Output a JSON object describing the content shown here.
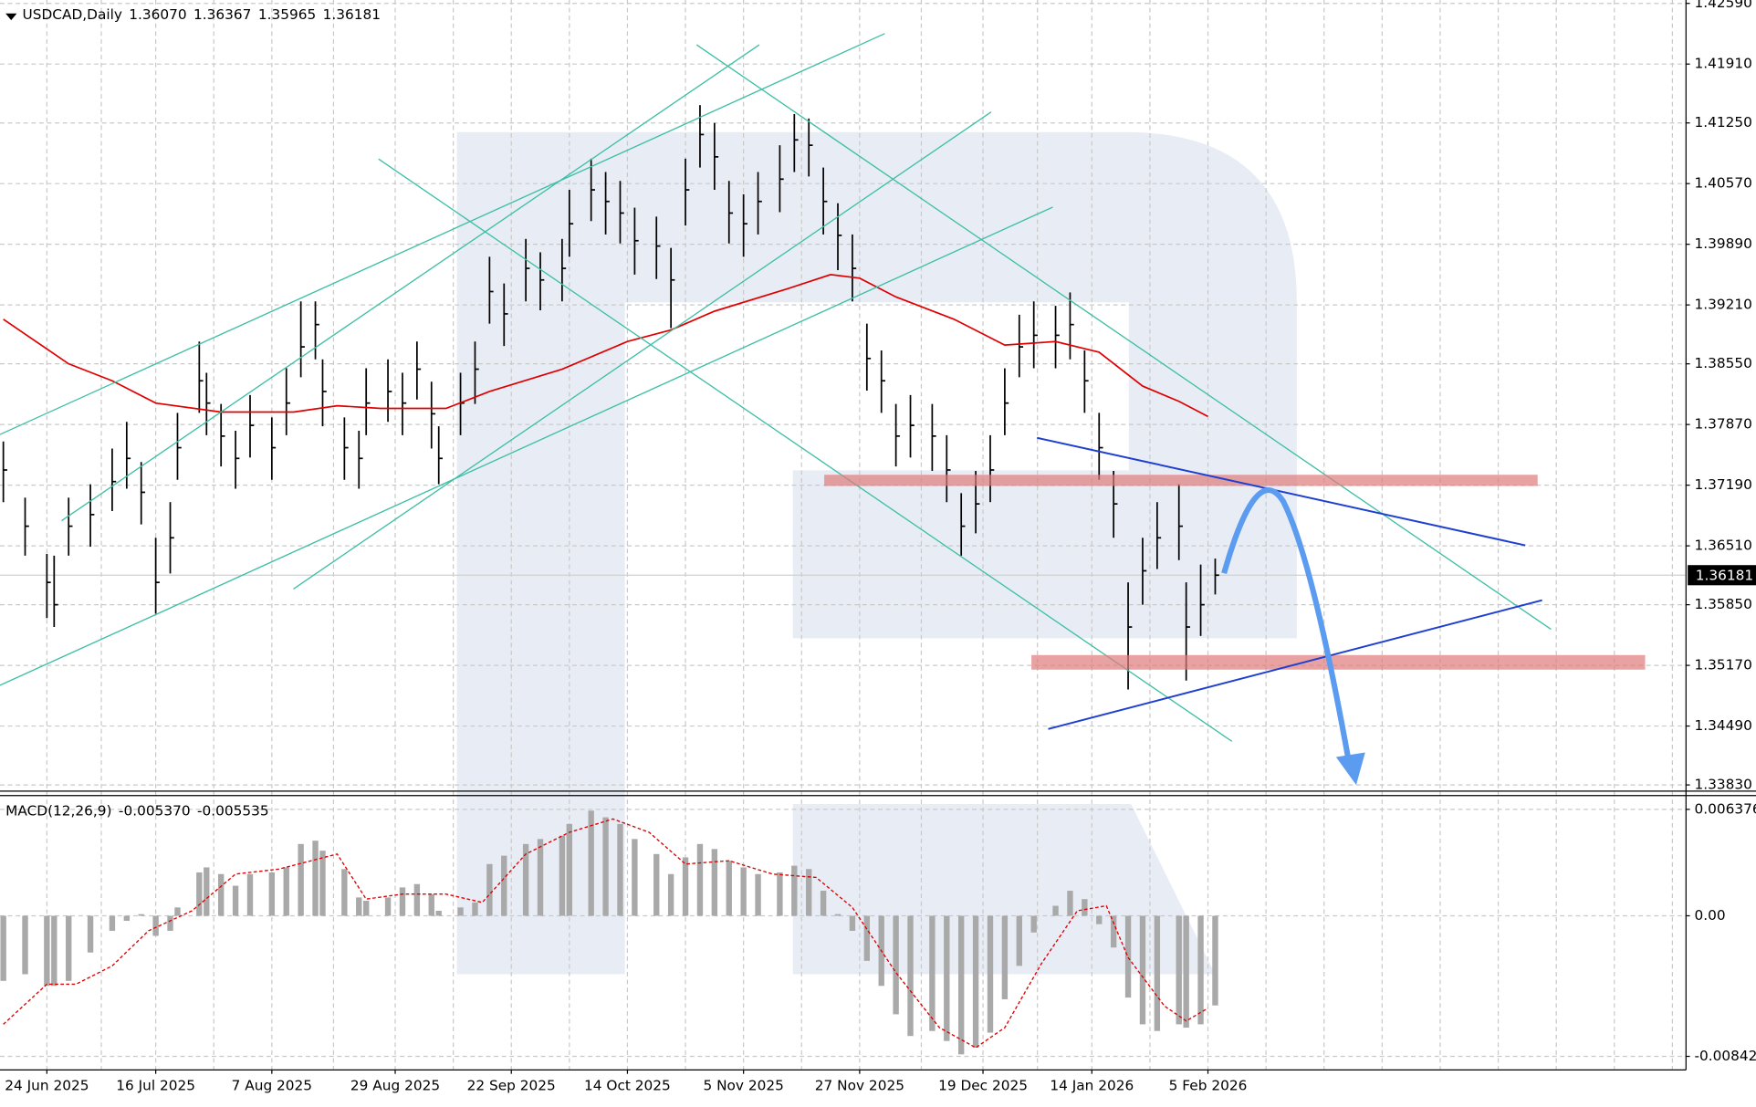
{
  "chart_data": [
    {
      "type": "ohlc",
      "title": "USDCAD,Daily",
      "header_values": [
        {
          "value": 1.3607,
          "label": "1.36070"
        },
        1.36367,
        1.35965,
        1.36181
      ],
      "x": [
        0,
        3,
        6,
        7,
        9,
        12,
        15,
        17,
        19,
        21,
        23,
        24,
        27,
        28,
        30,
        32,
        34,
        37,
        39,
        41,
        43,
        44,
        47,
        49,
        50,
        53,
        55,
        57,
        59,
        60,
        63,
        65,
        67,
        69,
        72,
        74,
        77,
        78,
        81,
        83,
        85,
        87,
        90,
        92,
        94,
        96,
        98,
        100,
        102,
        104,
        107,
        109,
        111,
        113,
        115,
        117,
        119,
        121,
        123,
        125,
        128,
        130,
        132,
        134,
        136,
        138,
        140,
        142,
        145,
        147,
        149,
        151,
        153,
        155,
        157,
        159,
        162,
        163,
        165,
        167
      ],
      "high": [
        1.3768,
        1.3705,
        1.3642,
        1.364,
        1.3705,
        1.372,
        1.376,
        1.379,
        1.3745,
        1.366,
        1.37,
        1.38,
        1.388,
        1.3845,
        1.381,
        1.378,
        1.382,
        1.3795,
        1.385,
        1.3925,
        1.3925,
        1.386,
        1.3795,
        1.378,
        1.385,
        1.386,
        1.3845,
        1.388,
        1.3835,
        1.3785,
        1.3845,
        1.388,
        1.3975,
        1.3945,
        1.3995,
        1.398,
        1.3995,
        1.405,
        1.4085,
        1.407,
        1.406,
        1.403,
        1.402,
        1.3985,
        1.4085,
        1.4145,
        1.4125,
        1.406,
        1.4045,
        1.407,
        1.41,
        1.4135,
        1.413,
        1.4075,
        1.4035,
        1.4,
        1.39,
        1.387,
        1.381,
        1.382,
        1.381,
        1.3775,
        1.371,
        1.3735,
        1.3775,
        1.385,
        1.391,
        1.3925,
        1.392,
        1.3935,
        1.387,
        1.38,
        1.3735,
        1.361,
        1.366,
        1.37,
        1.372,
        1.361,
        1.363,
        1.36367
      ],
      "low": [
        1.37,
        1.364,
        1.357,
        1.356,
        1.364,
        1.365,
        1.369,
        1.3715,
        1.3675,
        1.3575,
        1.362,
        1.3725,
        1.38,
        1.3775,
        1.374,
        1.3715,
        1.375,
        1.3725,
        1.3775,
        1.384,
        1.386,
        1.3785,
        1.3725,
        1.3715,
        1.3775,
        1.379,
        1.3775,
        1.3815,
        1.376,
        1.372,
        1.3775,
        1.381,
        1.39,
        1.3875,
        1.3925,
        1.3915,
        1.3925,
        1.3975,
        1.4015,
        1.4,
        1.399,
        1.3955,
        1.395,
        1.3895,
        1.401,
        1.4075,
        1.405,
        1.399,
        1.3975,
        1.4,
        1.4025,
        1.407,
        1.4065,
        1.4,
        1.396,
        1.3925,
        1.3825,
        1.38,
        1.374,
        1.375,
        1.3735,
        1.37,
        1.364,
        1.3665,
        1.37,
        1.3775,
        1.384,
        1.385,
        1.385,
        1.386,
        1.38,
        1.3725,
        1.366,
        1.349,
        1.3585,
        1.3625,
        1.3635,
        1.35,
        1.355,
        1.35965
      ],
      "close": [
        1.3736,
        1.3673,
        1.361,
        1.3585,
        1.3673,
        1.3686,
        1.3723,
        1.3749,
        1.3711,
        1.361,
        1.366,
        1.3761,
        1.3836,
        1.3811,
        1.3774,
        1.3749,
        1.3786,
        1.3761,
        1.3811,
        1.3874,
        1.3899,
        1.3824,
        1.3761,
        1.3749,
        1.3811,
        1.3824,
        1.3811,
        1.3849,
        1.3799,
        1.3749,
        1.3811,
        1.3849,
        1.3936,
        1.3911,
        1.3962,
        1.3949,
        1.3962,
        1.4012,
        1.405,
        1.4037,
        1.4024,
        1.3993,
        1.3987,
        1.3949,
        1.405,
        1.4112,
        1.4087,
        1.4024,
        1.4012,
        1.4037,
        1.4062,
        1.4106,
        1.41,
        1.4037,
        1.3999,
        1.3962,
        1.3861,
        1.3836,
        1.3774,
        1.3786,
        1.3774,
        1.3736,
        1.3673,
        1.3698,
        1.3736,
        1.3811,
        1.3874,
        1.3887,
        1.3887,
        1.3899,
        1.3836,
        1.3761,
        1.3698,
        1.356,
        1.3623,
        1.366,
        1.3673,
        1.356,
        1.3585,
        1.36181
      ],
      "color": "#000000",
      "ma": {
        "x": [
          0,
          9,
          15,
          21,
          30,
          40,
          46,
          52,
          61,
          67,
          77,
          86,
          92,
          98,
          108,
          114,
          118,
          123,
          131,
          138,
          145,
          151,
          157,
          162,
          166
        ],
        "values": [
          1.3905,
          1.3855,
          1.3836,
          1.3811,
          1.3801,
          1.3801,
          1.3808,
          1.3805,
          1.3805,
          1.3824,
          1.3849,
          1.388,
          1.3893,
          1.3914,
          1.3939,
          1.3955,
          1.3951,
          1.393,
          1.3905,
          1.3876,
          1.388,
          1.3868,
          1.383,
          1.3813,
          1.3796
        ],
        "color": "#e00000"
      },
      "current_price": 1.36181,
      "ylim": [
        1.33767,
        1.42628
      ],
      "yticks": [
        {
          "value": 1.4259,
          "label": "1.42590"
        },
        {
          "value": 1.4191,
          "label": "1.41910"
        },
        {
          "value": 1.4125,
          "label": "1.41250"
        },
        {
          "value": 1.4057,
          "label": "1.40570"
        },
        {
          "value": 1.3989,
          "label": "1.39890"
        },
        {
          "value": 1.3921,
          "label": "1.39210"
        },
        {
          "value": 1.3855,
          "label": "1.38550"
        },
        {
          "value": 1.3787,
          "label": "1.37870"
        },
        {
          "value": 1.3719,
          "label": "1.37190"
        },
        {
          "value": 1.3651,
          "label": "1.36510"
        },
        {
          "value": 1.3585,
          "label": "1.35850"
        },
        {
          "value": 1.3517,
          "label": "1.35170"
        },
        {
          "value": 1.3449,
          "label": "1.34490"
        },
        {
          "value": 1.3383,
          "label": "1.33830"
        }
      ],
      "xlim": [
        -0.46,
        231.8
      ],
      "xticks": [
        {
          "value": 6,
          "label": "24 Jun 2025"
        },
        {
          "value": 21,
          "label": "16 Jul 2025"
        },
        {
          "value": 37,
          "label": "7 Aug 2025"
        },
        {
          "value": 54,
          "label": "29 Aug 2025"
        },
        {
          "value": 70,
          "label": "22 Sep 2025"
        },
        {
          "value": 86,
          "label": "14 Oct 2025"
        },
        {
          "value": 102,
          "label": "5 Nov 2025"
        },
        {
          "value": 118,
          "label": "27 Nov 2025"
        },
        {
          "value": 135,
          "label": "19 Dec 2025"
        },
        {
          "value": 150,
          "label": "14 Jan 2026"
        },
        {
          "value": 166,
          "label": "5 Feb 2026"
        }
      ],
      "grid": true
    },
    {
      "type": "macd",
      "title": "MACD(12,26,9)",
      "header_values": [
        {
          "value": -0.00537,
          "label": "-0.005370"
        },
        -0.005535
      ],
      "x": [
        0,
        3,
        6,
        7,
        9,
        12,
        15,
        17,
        19,
        21,
        23,
        24,
        27,
        28,
        30,
        32,
        34,
        37,
        39,
        41,
        43,
        44,
        47,
        49,
        50,
        53,
        55,
        57,
        59,
        60,
        63,
        65,
        67,
        69,
        72,
        74,
        77,
        78,
        81,
        83,
        85,
        87,
        90,
        92,
        94,
        96,
        98,
        100,
        102,
        104,
        107,
        109,
        111,
        113,
        115,
        117,
        119,
        121,
        123,
        125,
        128,
        130,
        132,
        134,
        136,
        138,
        140,
        142,
        145,
        147,
        149,
        151,
        153,
        155,
        157,
        159,
        162,
        163,
        165,
        167
      ],
      "values": [
        -0.0039,
        -0.0035,
        -0.0042,
        -0.0042,
        -0.0039,
        -0.0022,
        -0.0009,
        -0.0003,
        0.0001,
        -0.0012,
        -0.0009,
        0.0005,
        0.0026,
        0.0029,
        0.0025,
        0.0018,
        0.0025,
        0.0026,
        0.0029,
        0.0043,
        0.0045,
        0.0039,
        0.0028,
        0.0011,
        0.0009,
        0.0011,
        0.0017,
        0.0019,
        0.0013,
        0.0003,
        0.0005,
        0.0008,
        0.0031,
        0.0036,
        0.0043,
        0.0046,
        0.0048,
        0.0055,
        0.0063,
        0.0059,
        0.0055,
        0.0046,
        0.0037,
        0.0025,
        0.0035,
        0.0043,
        0.004,
        0.0033,
        0.0029,
        0.0025,
        0.0026,
        0.003,
        0.0028,
        0.0015,
        0.0001,
        -0.0009,
        -0.0027,
        -0.0042,
        -0.0059,
        -0.0072,
        -0.0069,
        -0.0075,
        -0.0083,
        -0.0079,
        -0.007,
        -0.005,
        -0.003,
        -0.001,
        0.0006,
        0.0015,
        0.001,
        -0.0005,
        -0.0019,
        -0.0049,
        -0.0065,
        -0.0069,
        -0.0065,
        -0.0067,
        -0.0065,
        -0.00537
      ],
      "color": "#a9a9a9",
      "signal": {
        "x": [
          0,
          6,
          10,
          15,
          20,
          26,
          32,
          38,
          46,
          50,
          55,
          61,
          66,
          72,
          78,
          84,
          89,
          94,
          100,
          106,
          112,
          117,
          123,
          129,
          134,
          138,
          143,
          148,
          152,
          155,
          160,
          163,
          166
        ],
        "values": [
          -0.0065,
          -0.0041,
          -0.0041,
          -0.003,
          -0.0009,
          0.0003,
          0.0025,
          0.0028,
          0.0037,
          0.001,
          0.0013,
          0.0013,
          0.0008,
          0.0037,
          0.005,
          0.0058,
          0.005,
          0.0031,
          0.0033,
          0.0025,
          0.0023,
          0.0005,
          -0.0034,
          -0.0067,
          -0.0079,
          -0.0067,
          -0.0029,
          0.0003,
          0.0006,
          -0.0025,
          -0.0054,
          -0.0063,
          -0.005535
        ],
        "color": "#e00000"
      },
      "ylim": [
        -0.0092,
        0.0071
      ],
      "yticks": [
        0.006376,
        {
          "value": 0,
          "label": "0.00"
        },
        -0.00842
      ],
      "grid": true
    }
  ]
}
